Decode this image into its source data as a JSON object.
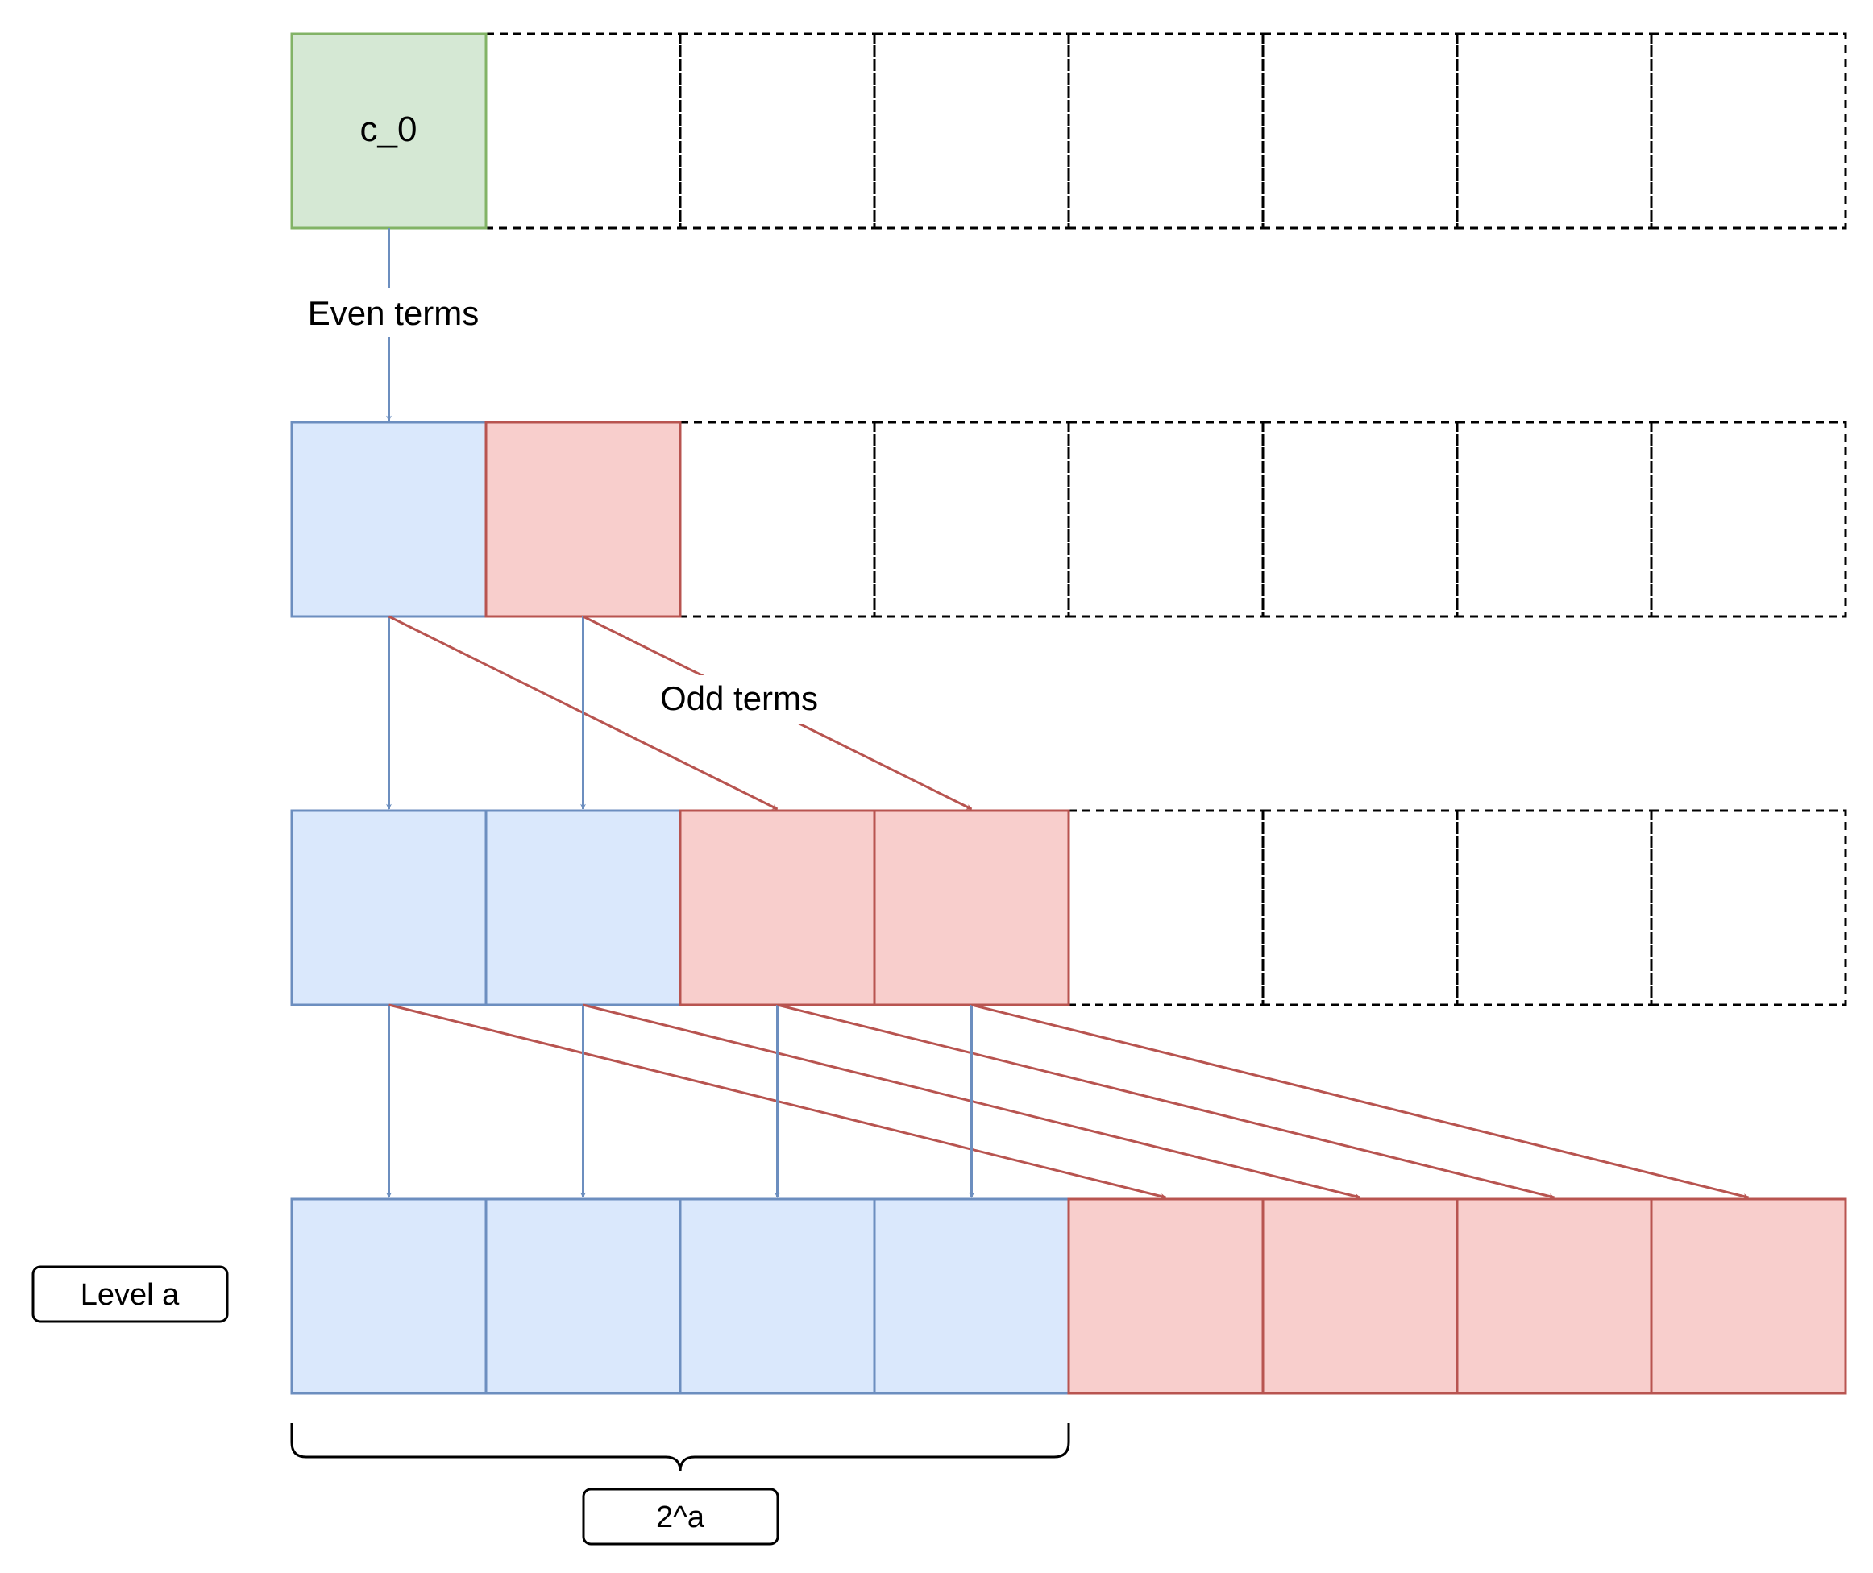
{
  "diagram": {
    "cell_labels": {
      "c0": "c_0"
    },
    "edge_labels": {
      "even": "Even terms",
      "odd": "Odd terms"
    },
    "level_label": "Level a",
    "brace_label": "2^a"
  },
  "colors": {
    "green_fill": "#d5e8d4",
    "green_stroke": "#82b366",
    "blue_fill": "#dae8fc",
    "blue_stroke": "#6c8ebf",
    "red_fill": "#f8cecc",
    "red_stroke": "#b85450",
    "empty_stroke": "#000000"
  },
  "rows": [
    {
      "cells": [
        "green",
        "empty",
        "empty",
        "empty",
        "empty",
        "empty",
        "empty",
        "empty"
      ]
    },
    {
      "cells": [
        "blue",
        "red",
        "empty",
        "empty",
        "empty",
        "empty",
        "empty",
        "empty"
      ]
    },
    {
      "cells": [
        "blue",
        "blue",
        "red",
        "red",
        "empty",
        "empty",
        "empty",
        "empty"
      ]
    },
    {
      "cells": [
        "blue",
        "blue",
        "blue",
        "blue",
        "red",
        "red",
        "red",
        "red"
      ]
    }
  ]
}
